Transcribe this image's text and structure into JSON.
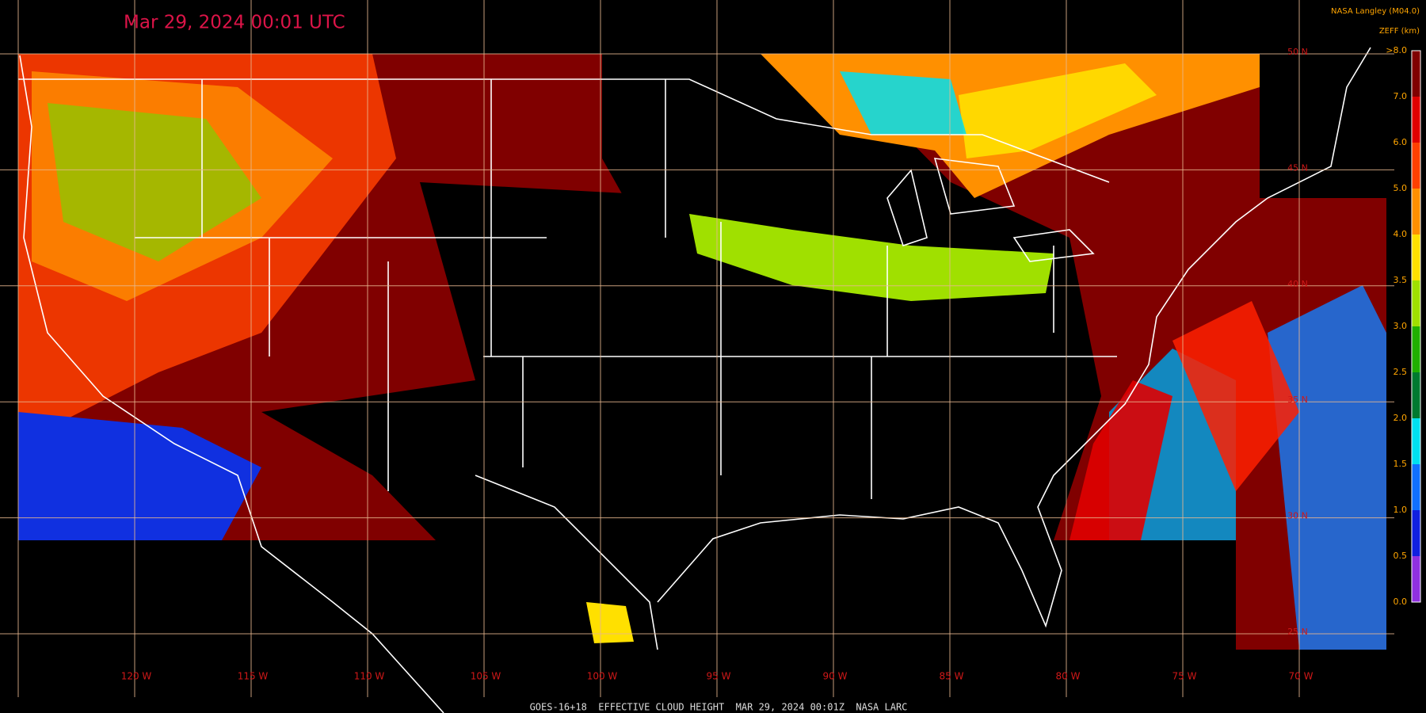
{
  "header": {
    "title": "Mar 29, 2024 00:01 UTC",
    "credit": "NASA Langley (M04.0)",
    "footer": "GOES-16+18  EFFECTIVE CLOUD HEIGHT  MAR 29, 2024 00:01Z  NASA LARC"
  },
  "longitudes": [
    "120 W",
    "115 W",
    "110 W",
    "105 W",
    "100 W",
    "95 W",
    "90 W",
    "85 W",
    "80 W",
    "75 W",
    "70 W"
  ],
  "latitudes": [
    "50 N",
    "45 N",
    "40 N",
    "35 N",
    "30 N",
    "25 N"
  ],
  "colorbar": {
    "label": "ZEFF (km)",
    "ticks": [
      ">8.0",
      "7.0",
      "6.0",
      "5.0",
      "4.0",
      "3.5",
      "3.0",
      "2.5",
      "2.0",
      "1.5",
      "1.0",
      "0.5",
      "0.0"
    ],
    "colors": [
      "#800000",
      "#e00000",
      "#ff4000",
      "#ff9000",
      "#ffe000",
      "#a0e000",
      "#20b000",
      "#007a30",
      "#00e0f0",
      "#1070ff",
      "#1020e0",
      "#9030e0"
    ]
  }
}
